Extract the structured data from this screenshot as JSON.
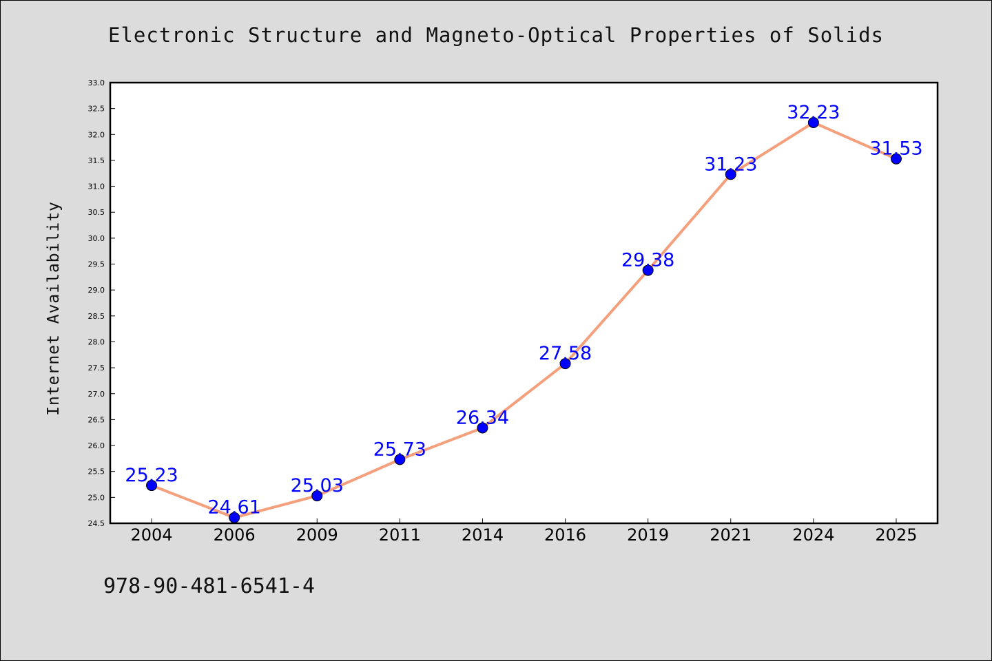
{
  "chart_data": {
    "type": "line",
    "title": "Electronic Structure and Magneto-Optical Properties of Solids",
    "xlabel": "",
    "ylabel": "Internet Availability",
    "categories": [
      "2004",
      "2006",
      "2009",
      "2011",
      "2014",
      "2016",
      "2019",
      "2021",
      "2024",
      "2025"
    ],
    "series": [
      {
        "values": [
          25.23,
          24.61,
          25.03,
          25.73,
          26.34,
          27.58,
          29.38,
          31.23,
          32.23,
          31.53
        ],
        "labels": [
          "25.23",
          "24.61",
          "25.03",
          "25.73",
          "26.34",
          "27.58",
          "29.38",
          "31.23",
          "32.23",
          "31.53"
        ],
        "line_color": "#f4a07c",
        "marker_color": "#0000ff"
      }
    ],
    "ylim": [
      24.5,
      33.0
    ],
    "yticks": [
      "24.5",
      "25.0",
      "25.5",
      "26.0",
      "26.5",
      "27.0",
      "27.5",
      "28.0",
      "28.5",
      "29.0",
      "29.5",
      "30.0",
      "30.5",
      "31.0",
      "31.5",
      "32.0",
      "32.5",
      "33.0"
    ],
    "grid": false,
    "legend": "none"
  },
  "footer": {
    "code": "978-90-481-6541-4"
  },
  "colors": {
    "background": "#dcdcdc",
    "plot_background": "#ffffff"
  }
}
